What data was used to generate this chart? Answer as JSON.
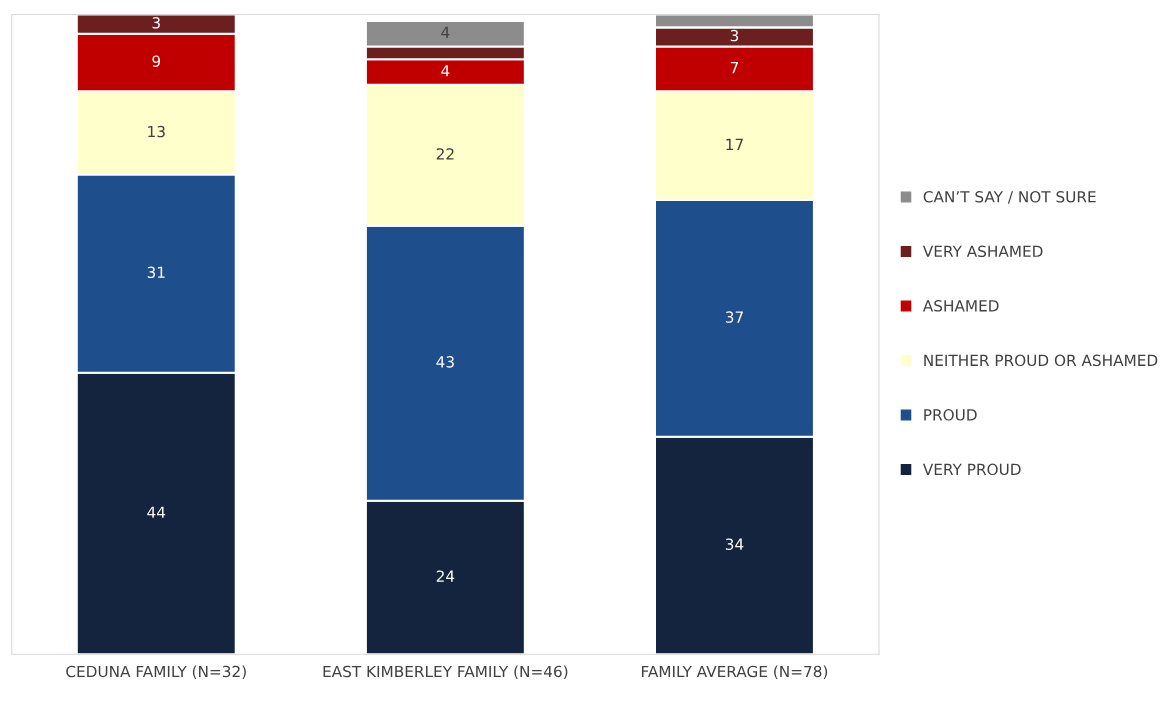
{
  "chart_data": {
    "type": "bar",
    "stacked": true,
    "legend": "right",
    "grid": false,
    "categories": [
      "CEDUNA FAMILY (N=32)",
      "EAST KIMBERLEY FAMILY (N=46)",
      "FAMILY AVERAGE (N=78)"
    ],
    "series": [
      {
        "name": "VERY PROUD",
        "color": "#14243f",
        "values": [
          44,
          24,
          34
        ],
        "data_labels": true
      },
      {
        "name": "PROUD",
        "color": "#1f4e8c",
        "values": [
          31,
          43,
          37
        ],
        "data_labels": true
      },
      {
        "name": "NEITHER PROUD OR ASHAMED",
        "color": "#ffffcc",
        "values": [
          13,
          22,
          17
        ],
        "data_labels": true
      },
      {
        "name": "ASHAMED",
        "color": "#c00000",
        "values": [
          9,
          4,
          7
        ],
        "data_labels": true
      },
      {
        "name": "VERY ASHAMED",
        "color": "#6b1f1f",
        "values": [
          3,
          2,
          3
        ],
        "value_labels": [
          "3",
          null,
          "3"
        ]
      },
      {
        "name": "CAN’T SAY / NOT SURE",
        "color": "#8c8c8c",
        "values": [
          null,
          4,
          2
        ],
        "value_labels": [
          null,
          "4",
          null
        ]
      }
    ]
  }
}
